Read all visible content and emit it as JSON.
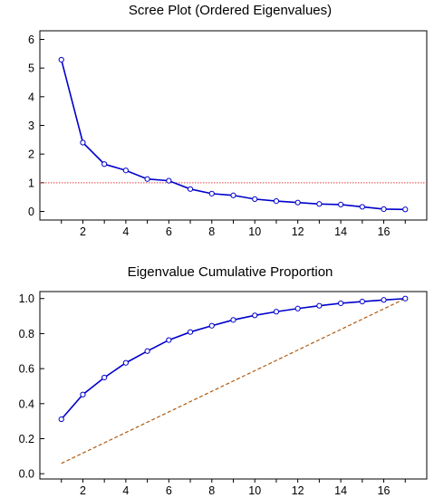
{
  "chart_data": [
    {
      "type": "line",
      "title": "Scree Plot (Ordered Eigenvalues)",
      "xlabel": "",
      "ylabel": "",
      "x": [
        1,
        2,
        3,
        4,
        5,
        6,
        7,
        8,
        9,
        10,
        11,
        12,
        13,
        14,
        15,
        16,
        17
      ],
      "xlim": [
        0,
        18
      ],
      "ylim": [
        -0.3,
        6.3
      ],
      "x_ticks": [
        2,
        4,
        6,
        8,
        10,
        12,
        14,
        16
      ],
      "y_ticks": [
        0,
        1,
        2,
        3,
        4,
        5,
        6
      ],
      "grid": false,
      "series": [
        {
          "values": [
            5.29,
            2.4,
            1.65,
            1.43,
            1.13,
            1.07,
            0.78,
            0.62,
            0.56,
            0.43,
            0.36,
            0.31,
            0.26,
            0.24,
            0.16,
            0.08,
            0.07
          ],
          "color": "#0000cc",
          "markers": "open-circle"
        }
      ],
      "reference_line": {
        "y": 1,
        "color": "#e04040",
        "style": "dotted"
      }
    },
    {
      "type": "line",
      "title": "Eigenvalue Cumulative Proportion",
      "xlabel": "",
      "ylabel": "",
      "x": [
        1,
        2,
        3,
        4,
        5,
        6,
        7,
        8,
        9,
        10,
        11,
        12,
        13,
        14,
        15,
        16,
        17
      ],
      "xlim": [
        0,
        18
      ],
      "ylim": [
        -0.03,
        1.04
      ],
      "x_ticks": [
        2,
        4,
        6,
        8,
        10,
        12,
        14,
        16
      ],
      "y_ticks": [
        "0.0",
        "0.2",
        "0.4",
        "0.6",
        "0.8",
        "1.0"
      ],
      "grid": false,
      "series": [
        {
          "values": [
            0.311,
            0.452,
            0.549,
            0.633,
            0.7,
            0.763,
            0.809,
            0.845,
            0.878,
            0.904,
            0.925,
            0.943,
            0.959,
            0.973,
            0.983,
            0.992,
            1.0
          ],
          "color": "#0000cc",
          "markers": "open-circle"
        }
      ],
      "reference_line": {
        "x_from": 1,
        "y_from": 0.0588,
        "x_to": 17,
        "y_to": 1.0,
        "color": "#b05a10",
        "style": "dashed"
      }
    }
  ]
}
